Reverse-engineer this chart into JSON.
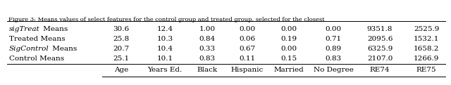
{
  "columns": [
    "",
    "Age",
    "Years Ed.",
    "Black",
    "Hispanic",
    "Married",
    "No Degree",
    "RE74",
    "RE75"
  ],
  "rows": [
    [
      "Control Means",
      "25.1",
      "10.1",
      "0.83",
      "0.11",
      "0.15",
      "0.83",
      "2107.0",
      "1266.9"
    ],
    [
      "SigControl Means",
      "20.7",
      "10.4",
      "0.33",
      "0.67",
      "0.00",
      "0.89",
      "6325.9",
      "1658.2"
    ],
    [
      "Treated Means",
      "25.8",
      "10.3",
      "0.84",
      "0.06",
      "0.19",
      "0.71",
      "2095.6",
      "1532.1"
    ],
    [
      "sigTreat Means",
      "30.6",
      "12.4",
      "1.00",
      "0.00",
      "0.00",
      "0.00",
      "9351.8",
      "2525.9"
    ]
  ],
  "italic_parts": {
    "1": "SigControl",
    "3": "sigTreat"
  },
  "caption": "Figure 3: Means values of select features for the control group and treated group, selected for the closest",
  "background_color": "#ffffff",
  "font_size": 7.5,
  "caption_font_size": 6.0
}
